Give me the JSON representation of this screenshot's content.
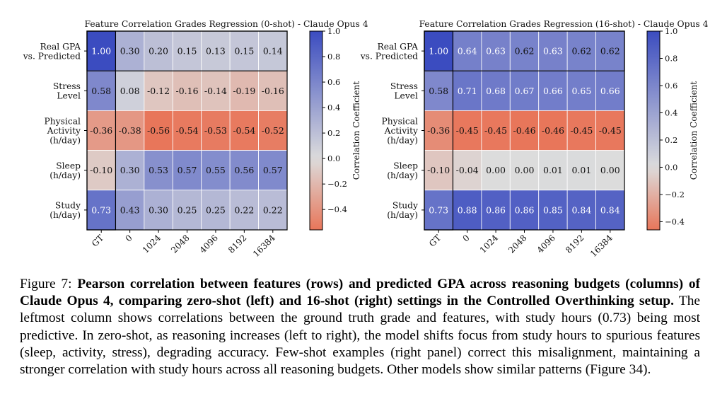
{
  "charts": [
    {
      "type": "heatmap",
      "title": "Feature Correlation Grades Regression (0-shot) - Claude Opus 4",
      "rows": [
        "Real GPA vs. Predicted",
        "Stress Level",
        "Physical Activity (h/day)",
        "Sleep (h/day)",
        "Study (h/day)"
      ],
      "row_lines": [
        [
          "Real GPA",
          "vs. Predicted"
        ],
        [
          "Stress",
          "Level"
        ],
        [
          "Physical",
          "Activity",
          "(h/day)"
        ],
        [
          "Sleep",
          "(h/day)"
        ],
        [
          "Study",
          "(h/day)"
        ]
      ],
      "columns": [
        "GT",
        "0",
        "1024",
        "2048",
        "4096",
        "8192",
        "16384"
      ],
      "values": [
        [
          1.0,
          0.3,
          0.2,
          0.15,
          0.13,
          0.15,
          0.14
        ],
        [
          0.58,
          0.08,
          -0.12,
          -0.16,
          -0.14,
          -0.19,
          -0.16
        ],
        [
          -0.36,
          -0.38,
          -0.56,
          -0.54,
          -0.53,
          -0.54,
          -0.52
        ],
        [
          -0.1,
          0.3,
          0.53,
          0.57,
          0.55,
          0.56,
          0.57
        ],
        [
          0.73,
          0.43,
          0.3,
          0.25,
          0.25,
          0.22,
          0.22
        ]
      ],
      "vmin": -0.56,
      "vmax": 1.0,
      "colorbar_label": "Correlation Coefficient",
      "colorbar_ticks": [
        "1.0",
        "0.8",
        "0.6",
        "0.4",
        "0.2",
        "0.0",
        "−0.2",
        "−0.4"
      ]
    },
    {
      "type": "heatmap",
      "title": "Feature Correlation Grades Regression (16-shot) - Claude Opus 4",
      "rows": [
        "Real GPA vs. Predicted",
        "Stress Level",
        "Physical Activity (h/day)",
        "Sleep (h/day)",
        "Study (h/day)"
      ],
      "row_lines": [
        [
          "Real GPA",
          "vs. Predicted"
        ],
        [
          "Stress",
          "Level"
        ],
        [
          "Physical",
          "Activity",
          "(h/day)"
        ],
        [
          "Sleep",
          "(h/day)"
        ],
        [
          "Study",
          "(h/day)"
        ]
      ],
      "columns": [
        "GT",
        "0",
        "1024",
        "2048",
        "4096",
        "8192",
        "16384"
      ],
      "values": [
        [
          1.0,
          0.64,
          0.63,
          0.62,
          0.63,
          0.62,
          0.62
        ],
        [
          0.58,
          0.71,
          0.68,
          0.67,
          0.66,
          0.65,
          0.66
        ],
        [
          -0.36,
          -0.45,
          -0.45,
          -0.46,
          -0.46,
          -0.45,
          -0.45
        ],
        [
          -0.1,
          -0.04,
          0.0,
          0.0,
          0.01,
          0.01,
          0.0
        ],
        [
          0.73,
          0.88,
          0.86,
          0.86,
          0.85,
          0.84,
          0.84
        ]
      ],
      "vmin": -0.46,
      "vmax": 1.0,
      "colorbar_label": "Correlation Coefficient",
      "colorbar_ticks": [
        "1.0",
        "0.8",
        "0.6",
        "0.4",
        "0.2",
        "0.0",
        "−0.2",
        "−0.4"
      ]
    }
  ],
  "colors": {
    "low": "#e8765a",
    "mid": "#dcdcdc",
    "high": "#3b4cc0"
  },
  "caption": {
    "label": "Figure 7:",
    "bold": "Pearson correlation between features (rows) and predicted GPA across reasoning budgets (columns) of Claude Opus 4, comparing zero-shot (left) and 16-shot (right) settings in the Controlled Overthinking setup.",
    "text": "The leftmost column shows correlations between the ground truth grade and features, with study hours (0.73) being most predictive. In zero-shot, as reasoning increases (left to right), the model shifts focus from study hours to spurious features (sleep, activity, stress), degrading accuracy. Few-shot examples (right panel) correct this misalignment, maintaining a stronger correlation with study hours across all reasoning budgets. Other models show similar patterns (Figure 34)."
  }
}
